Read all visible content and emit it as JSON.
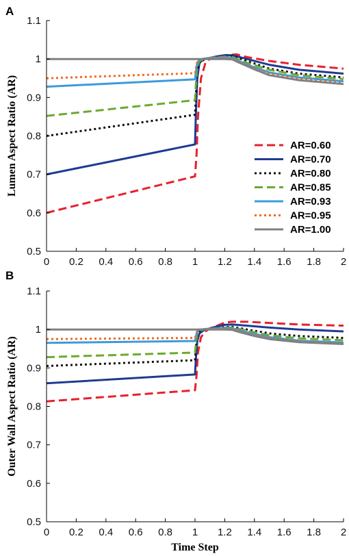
{
  "chart_data": [
    {
      "type": "line",
      "panel_label": "A",
      "xlabel": "",
      "ylabel": "Lumen Aspect Ratio (AR)",
      "xlim": [
        0,
        2
      ],
      "ylim": [
        0.5,
        1.1
      ],
      "xticks": [
        "0",
        "0.2",
        "0.4",
        "0.6",
        "0.8",
        "1",
        "1.2",
        "1.4",
        "1.6",
        "1.8",
        "2"
      ],
      "yticks": [
        "0.5",
        "0.6",
        "0.7",
        "0.8",
        "0.9",
        "1",
        "1.1"
      ],
      "grid": false,
      "legend_position": "right",
      "series": [
        {
          "name": "AR=0.60",
          "color": "#e8202a",
          "style": "dashed",
          "x": [
            0,
            1,
            1.01,
            1.02,
            1.04,
            1.07,
            1.1,
            1.15,
            1.2,
            1.28,
            1.35,
            1.5,
            1.7,
            2.0
          ],
          "y": [
            0.6,
            0.695,
            0.75,
            0.85,
            0.95,
            0.99,
            1.0,
            1.005,
            1.01,
            1.012,
            1.005,
            0.995,
            0.985,
            0.975
          ]
        },
        {
          "name": "AR=0.70",
          "color": "#1f3a93",
          "style": "solid",
          "x": [
            0,
            1,
            1.005,
            1.015,
            1.03,
            1.06,
            1.1,
            1.15,
            1.2,
            1.25,
            1.35,
            1.5,
            1.7,
            2.0
          ],
          "y": [
            0.7,
            0.778,
            0.85,
            0.95,
            0.99,
            1.0,
            1.003,
            1.007,
            1.01,
            1.01,
            1.0,
            0.985,
            0.972,
            0.962
          ]
        },
        {
          "name": "AR=0.80",
          "color": "#111111",
          "style": "dotted",
          "x": [
            0,
            1,
            1.005,
            1.015,
            1.03,
            1.06,
            1.1,
            1.2,
            1.25,
            1.35,
            1.5,
            1.7,
            2.0
          ],
          "y": [
            0.8,
            0.855,
            0.9,
            0.97,
            0.99,
            0.998,
            1.002,
            1.007,
            1.007,
            0.995,
            0.975,
            0.962,
            0.952
          ]
        },
        {
          "name": "AR=0.85",
          "color": "#6aaa2e",
          "style": "dashed",
          "x": [
            0,
            1,
            1.005,
            1.015,
            1.03,
            1.06,
            1.1,
            1.2,
            1.25,
            1.35,
            1.5,
            1.7,
            2.0
          ],
          "y": [
            0.852,
            0.893,
            0.93,
            0.98,
            0.995,
            1.0,
            1.003,
            1.006,
            1.005,
            0.99,
            0.972,
            0.958,
            0.948
          ]
        },
        {
          "name": "AR=0.93",
          "color": "#3a9bdc",
          "style": "solid",
          "x": [
            0,
            1,
            1.005,
            1.015,
            1.03,
            1.06,
            1.1,
            1.2,
            1.25,
            1.35,
            1.5,
            1.7,
            2.0
          ],
          "y": [
            0.928,
            0.947,
            0.965,
            0.99,
            0.998,
            1.001,
            1.003,
            1.005,
            1.003,
            0.985,
            0.965,
            0.952,
            0.942
          ]
        },
        {
          "name": "AR=0.95",
          "color": "#f06a1e",
          "style": "dotted",
          "x": [
            0,
            1,
            1.005,
            1.015,
            1.03,
            1.06,
            1.1,
            1.2,
            1.25,
            1.35,
            1.5,
            1.7,
            2.0
          ],
          "y": [
            0.95,
            0.963,
            0.975,
            0.993,
            0.999,
            1.001,
            1.002,
            1.004,
            1.002,
            0.983,
            0.962,
            0.949,
            0.938
          ]
        },
        {
          "name": "AR=1.00",
          "color": "#808080",
          "style": "solid",
          "x": [
            0,
            1,
            1.2,
            1.25,
            1.3,
            1.4,
            1.5,
            1.7,
            2.0
          ],
          "y": [
            1.0,
            1.0,
            1.0,
            0.999,
            0.99,
            0.973,
            0.958,
            0.945,
            0.935
          ]
        }
      ]
    },
    {
      "type": "line",
      "panel_label": "B",
      "xlabel": "Time Step",
      "ylabel": "Outer Wall Aspect Ratio (AR)",
      "xlim": [
        0,
        2
      ],
      "ylim": [
        0.5,
        1.1
      ],
      "xticks": [
        "0",
        "0.2",
        "0.4",
        "0.6",
        "0.8",
        "1",
        "1.2",
        "1.4",
        "1.6",
        "1.8",
        "2"
      ],
      "yticks": [
        "0.5",
        "0.6",
        "0.7",
        "0.8",
        "0.9",
        "1",
        "1.1"
      ],
      "grid": false,
      "series": [
        {
          "name": "AR=0.60",
          "color": "#e8202a",
          "style": "dashed",
          "x": [
            0,
            1,
            1.01,
            1.02,
            1.04,
            1.07,
            1.1,
            1.15,
            1.2,
            1.25,
            1.35,
            1.5,
            1.7,
            2.0
          ],
          "y": [
            0.813,
            0.842,
            0.88,
            0.94,
            0.98,
            0.995,
            1.002,
            1.01,
            1.018,
            1.02,
            1.02,
            1.017,
            1.013,
            1.01
          ]
        },
        {
          "name": "AR=0.70",
          "color": "#1f3a93",
          "style": "solid",
          "x": [
            0,
            1,
            1.005,
            1.015,
            1.03,
            1.06,
            1.1,
            1.15,
            1.2,
            1.25,
            1.35,
            1.5,
            1.7,
            2.0
          ],
          "y": [
            0.86,
            0.883,
            0.92,
            0.97,
            0.99,
            0.998,
            1.003,
            1.008,
            1.012,
            1.013,
            1.01,
            1.005,
            1.0,
            0.995
          ]
        },
        {
          "name": "AR=0.80",
          "color": "#111111",
          "style": "dotted",
          "x": [
            0,
            1,
            1.005,
            1.015,
            1.03,
            1.06,
            1.1,
            1.2,
            1.25,
            1.35,
            1.5,
            1.7,
            2.0
          ],
          "y": [
            0.905,
            0.92,
            0.95,
            0.985,
            0.995,
            1.0,
            1.002,
            1.006,
            1.007,
            1.0,
            0.99,
            0.983,
            0.978
          ]
        },
        {
          "name": "AR=0.85",
          "color": "#6aaa2e",
          "style": "dashed",
          "x": [
            0,
            1,
            1.005,
            1.015,
            1.03,
            1.06,
            1.1,
            1.2,
            1.25,
            1.35,
            1.5,
            1.7,
            2.0
          ],
          "y": [
            0.928,
            0.94,
            0.96,
            0.99,
            0.997,
            1.0,
            1.002,
            1.005,
            1.005,
            0.997,
            0.985,
            0.977,
            0.972
          ]
        },
        {
          "name": "AR=0.93",
          "color": "#3a9bdc",
          "style": "solid",
          "x": [
            0,
            1,
            1.005,
            1.015,
            1.03,
            1.06,
            1.1,
            1.2,
            1.25,
            1.35,
            1.5,
            1.7,
            2.0
          ],
          "y": [
            0.965,
            0.97,
            0.98,
            0.995,
            0.999,
            1.001,
            1.002,
            1.004,
            1.003,
            0.993,
            0.98,
            0.971,
            0.966
          ]
        },
        {
          "name": "AR=0.95",
          "color": "#f06a1e",
          "style": "dotted",
          "x": [
            0,
            1,
            1.005,
            1.015,
            1.03,
            1.06,
            1.1,
            1.2,
            1.25,
            1.35,
            1.5,
            1.7,
            2.0
          ],
          "y": [
            0.975,
            0.978,
            0.985,
            0.997,
            1.0,
            1.001,
            1.002,
            1.003,
            1.002,
            0.991,
            0.978,
            0.969,
            0.963
          ]
        },
        {
          "name": "AR=1.00",
          "color": "#808080",
          "style": "solid",
          "x": [
            0,
            1,
            1.2,
            1.25,
            1.3,
            1.4,
            1.5,
            1.7,
            2.0
          ],
          "y": [
            1.0,
            1.0,
            1.0,
            0.999,
            0.993,
            0.983,
            0.975,
            0.967,
            0.962
          ]
        }
      ]
    }
  ]
}
